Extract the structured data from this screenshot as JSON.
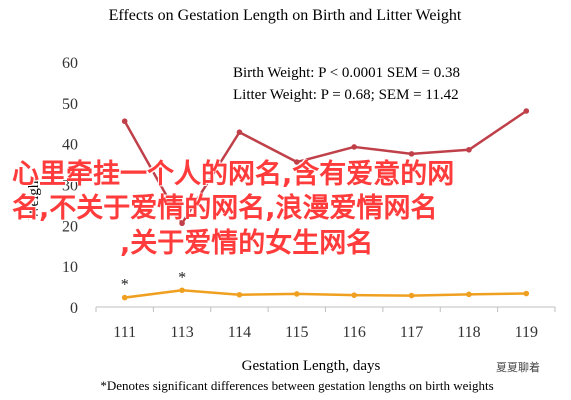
{
  "chart_data": {
    "type": "line",
    "title": "Effects on Gestation Length on Birth and Litter Weight",
    "xlabel": "Gestation Length, days",
    "ylabel": "Weight",
    "categories": [
      "111",
      "113",
      "114",
      "115",
      "116",
      "117",
      "118",
      "119"
    ],
    "ylim": [
      0,
      60
    ],
    "yticks": [
      0,
      10,
      20,
      30,
      40,
      50,
      60
    ],
    "grid": false,
    "series": [
      {
        "name": "Birth Weight",
        "values": [
          2.3,
          4.1,
          3.0,
          3.2,
          2.9,
          2.8,
          3.1,
          3.3
        ],
        "color": "#f0a020"
      },
      {
        "name": "Litter Weight",
        "values": [
          45.5,
          20.5,
          42.8,
          35.5,
          39.2,
          37.5,
          38.5,
          48.0
        ],
        "color": "#c0404a"
      }
    ],
    "annotations": [
      {
        "text": "*",
        "category": "111"
      },
      {
        "text": "*",
        "category": "113"
      }
    ],
    "stats_lines": [
      "Birth Weight: P < 0.0001 SEM = 0.38",
      "Litter Weight: P = 0.68; SEM = 11.42"
    ],
    "footnote": "*Denotes significant differences between gestation lengths on birth weights"
  },
  "overlay": {
    "line1": "心里牵挂一个人的网名,含有爱意的网",
    "line2": "名,不关于爱情的网名,浪漫爱情网名",
    "line3": ",关于爱情的女生网名"
  },
  "watermark": {
    "text": "夏夏聊着"
  }
}
